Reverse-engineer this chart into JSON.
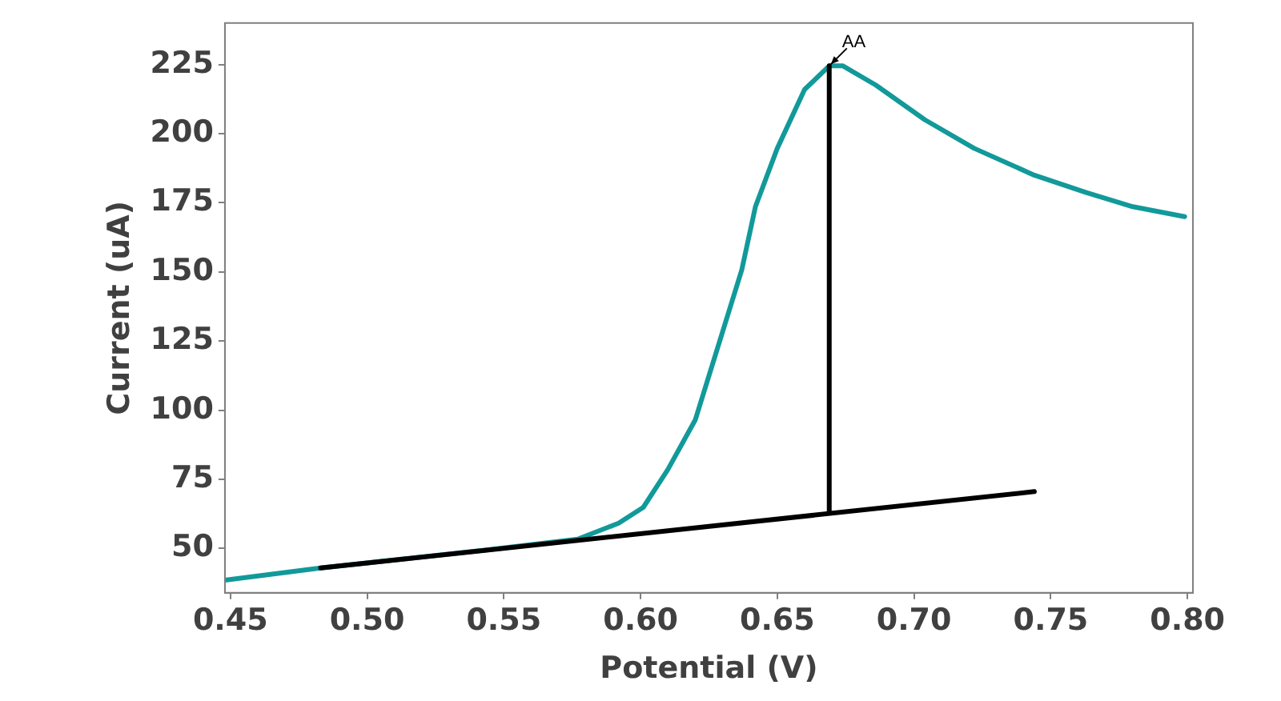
{
  "chart_data": {
    "type": "line",
    "xlabel": "Potential (V)",
    "ylabel": "Current (uA)",
    "xlim": [
      0.448,
      0.802
    ],
    "ylim": [
      34,
      240
    ],
    "xticks": [
      0.45,
      {
        "value": 0.5,
        "label": "0.50"
      },
      0.55,
      {
        "value": 0.6,
        "label": "0.60"
      },
      0.65,
      {
        "value": 0.7,
        "label": "0.70"
      },
      0.75,
      {
        "value": 0.8,
        "label": "0.80"
      }
    ],
    "yticks": [
      50,
      75,
      100,
      125,
      150,
      175,
      200,
      225
    ],
    "grid": false,
    "legend": false,
    "marker": "none",
    "line_style": "solid",
    "annotations": [
      {
        "text": "AA",
        "x": 0.669,
        "y": 224.5
      }
    ],
    "series": [
      {
        "color": "#000000",
        "x": [
          0.483,
          0.744
        ],
        "values": [
          43,
          70.6
        ]
      },
      {
        "color": "#000000",
        "x": [
          0.669,
          0.669
        ],
        "values": [
          63.2,
          224.5
        ]
      },
      {
        "color": "#12999a",
        "x": [
          0.448,
          0.483,
          0.543,
          0.577,
          0.592,
          0.601,
          0.61,
          0.62,
          0.628,
          0.637,
          0.642,
          0.65,
          0.66,
          0.669,
          0.674,
          0.686,
          0.704,
          0.722,
          0.744,
          0.763,
          0.78,
          0.799
        ],
        "values": [
          38.6,
          43,
          49.4,
          53.4,
          59.2,
          64.9,
          78.6,
          96.5,
          122,
          150.7,
          173.6,
          194.7,
          216,
          224.5,
          224.5,
          217.6,
          205,
          194.7,
          185,
          178.7,
          173.6,
          170
        ]
      }
    ]
  }
}
